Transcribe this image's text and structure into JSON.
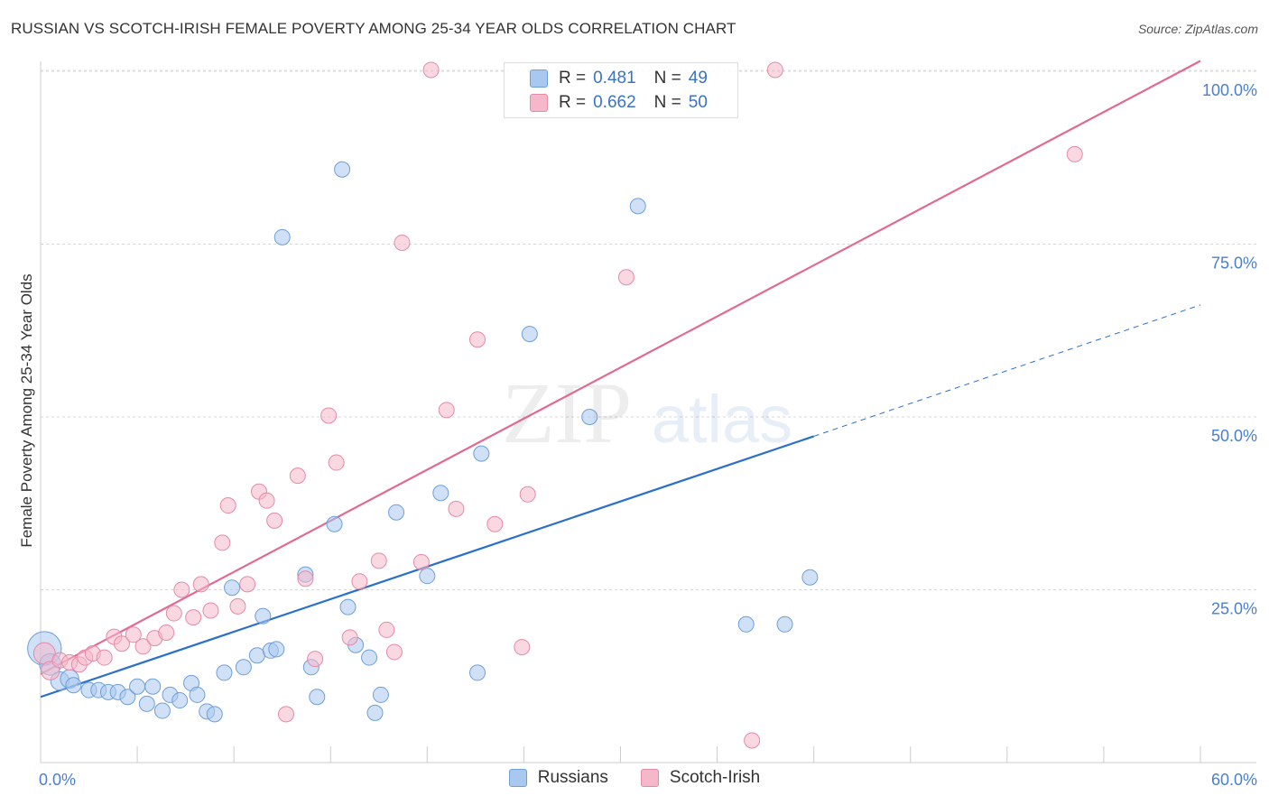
{
  "title": "RUSSIAN VS SCOTCH-IRISH FEMALE POVERTY AMONG 25-34 YEAR OLDS CORRELATION CHART",
  "source": "Source: ZipAtlas.com",
  "watermark": {
    "zip": "ZIP",
    "atlas": "atlas"
  },
  "colors": {
    "russians_fill": "#a9c8f0",
    "russians_stroke": "#6e9fd8",
    "russians_line": "#2a6fcb",
    "scotch_fill": "#f5b8ca",
    "scotch_stroke": "#e58aa8",
    "scotch_line": "#e06a93",
    "tick_label": "#4a7fd0"
  },
  "legend": {
    "r_label": "R =",
    "n_label": "N =",
    "rows": [
      {
        "r": "0.481",
        "n": "49"
      },
      {
        "r": "0.662",
        "n": "50"
      }
    ]
  },
  "chart_data": {
    "type": "scatter",
    "title": "RUSSIAN VS SCOTCH-IRISH FEMALE POVERTY AMONG 25-34 YEAR OLDS CORRELATION CHART",
    "xlabel": "",
    "ylabel": "Female Poverty Among 25-34 Year Olds",
    "xlim": [
      0,
      60
    ],
    "ylim": [
      0,
      102.5
    ],
    "x_tick_labels": [
      "0.0%",
      "60.0%"
    ],
    "y_ticks": [
      25,
      50,
      75,
      100
    ],
    "y_tick_labels": [
      "25.0%",
      "50.0%",
      "75.0%",
      "100.0%"
    ],
    "grid": true,
    "legend_position": "top-center",
    "series": [
      {
        "name": "Russians",
        "points": [
          [
            0.2,
            16.5,
            22
          ],
          [
            0.5,
            14.2,
            14
          ],
          [
            1.0,
            11.8,
            12
          ],
          [
            1.5,
            12.1,
            12
          ],
          [
            1.7,
            11.2,
            10
          ],
          [
            2.5,
            10.5,
            10
          ],
          [
            3.0,
            10.5,
            10
          ],
          [
            3.5,
            10.2,
            10
          ],
          [
            4.0,
            10.2,
            10
          ],
          [
            4.5,
            9.5,
            10
          ],
          [
            5.0,
            11.0,
            10
          ],
          [
            5.5,
            8.5,
            10
          ],
          [
            5.8,
            11.0,
            10
          ],
          [
            6.3,
            7.5,
            10
          ],
          [
            6.7,
            9.8,
            10
          ],
          [
            7.2,
            9.0,
            10
          ],
          [
            7.8,
            11.5,
            10
          ],
          [
            8.1,
            9.8,
            10
          ],
          [
            8.6,
            7.4,
            10
          ],
          [
            9.0,
            7.0,
            10
          ],
          [
            9.5,
            13.0,
            10
          ],
          [
            9.9,
            25.3,
            10
          ],
          [
            10.5,
            13.8,
            10
          ],
          [
            11.2,
            15.5,
            10
          ],
          [
            11.5,
            21.2,
            10
          ],
          [
            11.9,
            16.2,
            10
          ],
          [
            12.2,
            16.4,
            10
          ],
          [
            12.5,
            76.0,
            10
          ],
          [
            13.7,
            27.2,
            10
          ],
          [
            14.0,
            13.8,
            10
          ],
          [
            14.3,
            9.5,
            10
          ],
          [
            15.2,
            34.5,
            10
          ],
          [
            15.6,
            85.8,
            10
          ],
          [
            15.9,
            22.5,
            10
          ],
          [
            16.3,
            17.0,
            10
          ],
          [
            17.0,
            15.2,
            10
          ],
          [
            17.3,
            7.2,
            10
          ],
          [
            17.6,
            9.8,
            10
          ],
          [
            18.4,
            36.2,
            10
          ],
          [
            20.0,
            27.0,
            10
          ],
          [
            20.7,
            39.0,
            10
          ],
          [
            22.6,
            13.0,
            10
          ],
          [
            22.8,
            44.7,
            10
          ],
          [
            25.3,
            62.0,
            10
          ],
          [
            28.4,
            50.0,
            10
          ],
          [
            30.9,
            80.5,
            10
          ],
          [
            36.5,
            20.0,
            10
          ],
          [
            38.5,
            20.0,
            10
          ],
          [
            39.8,
            26.8,
            10
          ]
        ]
      },
      {
        "name": "Scotch-Irish",
        "points": [
          [
            0.2,
            15.8,
            14
          ],
          [
            0.5,
            13.3,
            12
          ],
          [
            1.0,
            14.8,
            10
          ],
          [
            1.5,
            14.5,
            10
          ],
          [
            2.0,
            14.2,
            10
          ],
          [
            2.3,
            15.2,
            10
          ],
          [
            2.7,
            15.8,
            10
          ],
          [
            3.3,
            15.2,
            10
          ],
          [
            3.8,
            18.2,
            10
          ],
          [
            4.2,
            17.2,
            10
          ],
          [
            4.8,
            18.5,
            10
          ],
          [
            5.3,
            16.8,
            10
          ],
          [
            5.9,
            18.0,
            10
          ],
          [
            6.5,
            18.8,
            10
          ],
          [
            6.9,
            21.6,
            10
          ],
          [
            7.3,
            25.0,
            10
          ],
          [
            7.9,
            21.0,
            10
          ],
          [
            8.3,
            25.8,
            10
          ],
          [
            8.8,
            22.0,
            10
          ],
          [
            9.4,
            31.8,
            10
          ],
          [
            9.7,
            37.2,
            10
          ],
          [
            10.2,
            22.6,
            10
          ],
          [
            10.7,
            25.8,
            10
          ],
          [
            11.3,
            39.2,
            10
          ],
          [
            11.7,
            37.9,
            10
          ],
          [
            12.1,
            35.0,
            10
          ],
          [
            12.7,
            7.0,
            10
          ],
          [
            13.3,
            41.5,
            10
          ],
          [
            13.7,
            26.6,
            10
          ],
          [
            14.2,
            15.0,
            10
          ],
          [
            14.9,
            50.2,
            10
          ],
          [
            15.3,
            43.4,
            10
          ],
          [
            16.0,
            18.1,
            10
          ],
          [
            16.5,
            26.2,
            10
          ],
          [
            17.5,
            29.2,
            10
          ],
          [
            17.9,
            19.2,
            10
          ],
          [
            18.3,
            16.0,
            10
          ],
          [
            18.7,
            75.2,
            10
          ],
          [
            19.7,
            29.0,
            10
          ],
          [
            20.2,
            100.2,
            10
          ],
          [
            21.0,
            51.0,
            10
          ],
          [
            21.5,
            36.7,
            10
          ],
          [
            22.6,
            61.2,
            10
          ],
          [
            23.5,
            34.5,
            10
          ],
          [
            24.9,
            16.7,
            10
          ],
          [
            25.2,
            38.8,
            10
          ],
          [
            30.3,
            70.2,
            10
          ],
          [
            36.8,
            3.2,
            10
          ],
          [
            38.0,
            100.2,
            10
          ],
          [
            53.5,
            88.0,
            10
          ]
        ]
      }
    ],
    "trend_lines": [
      {
        "series": "Russians",
        "solid_from": [
          0,
          9.5
        ],
        "solid_to": [
          40,
          47.2
        ],
        "dashed_to": [
          60,
          66.2
        ]
      },
      {
        "series": "Scotch-Irish",
        "from": [
          0,
          12.8
        ],
        "to": [
          60,
          101.5
        ]
      }
    ]
  }
}
